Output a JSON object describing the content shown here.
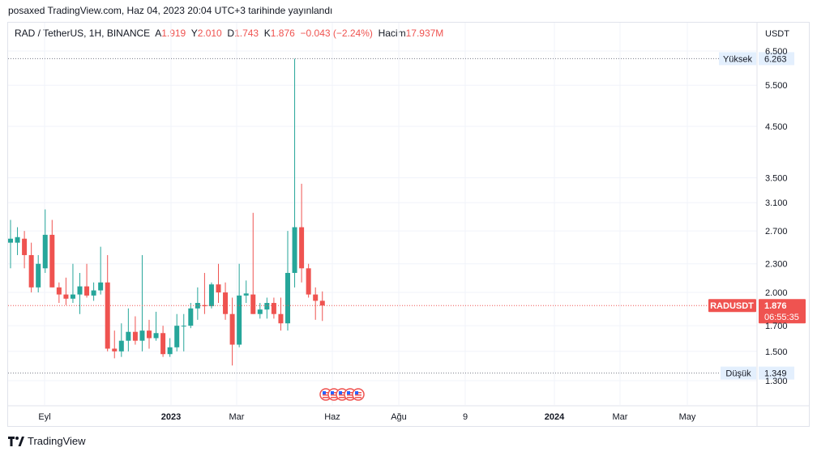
{
  "caption": "posaxed TradingView.com, Haz 04, 2023 20:04 UTC+3 tarihinde yayınlandı",
  "legend": {
    "symbol": "RAD / TetherUS, 1H, BINANCE",
    "open_label": "A",
    "open": "1.919",
    "high_label": "Y",
    "high": "2.010",
    "low_label": "D",
    "low": "1.743",
    "close_label": "K",
    "close": "1.876",
    "change": "−0.043 (−2.24%)",
    "volume_label": "Hacim",
    "volume": "17.937M"
  },
  "axis_currency": "USDT",
  "markers": {
    "high_label": "Yüksek",
    "high_value": "6.263",
    "low_label": "Düşük",
    "low_value": "1.349",
    "symbol_tag": "RADUSDT",
    "price_tag": "1.876",
    "countdown": "06:55:35"
  },
  "footer": {
    "brand": "TradingView",
    "logo_icon": "tradingview-logo-icon"
  },
  "colors": {
    "up": "#26a69a",
    "down": "#ef5350",
    "grid": "#f0f3fa",
    "tag_bg": "#e3effd"
  },
  "chart_data": {
    "type": "candlestick",
    "y_scale": "log",
    "y_ticks": [
      "6.500",
      "5.500",
      "4.500",
      "3.500",
      "3.100",
      "2.700",
      "2.300",
      "2.000",
      "1.700",
      "1.500",
      "1.300"
    ],
    "y_tick_values": [
      6.5,
      5.5,
      4.5,
      3.5,
      3.1,
      2.7,
      2.3,
      2.0,
      1.7,
      1.5,
      1.3
    ],
    "x_ticks": [
      "Eyl",
      "2023",
      "Mar",
      "Haz",
      "Ağu",
      "9",
      "2024",
      "Mar",
      "May"
    ],
    "x_bold": [
      "2023",
      "2024"
    ],
    "high_line": 6.263,
    "low_line": 1.349,
    "last_price": 1.876,
    "candles": [
      {
        "o": 2.55,
        "h": 2.85,
        "l": 2.25,
        "c": 2.6
      },
      {
        "o": 2.55,
        "h": 2.75,
        "l": 2.4,
        "c": 2.62
      },
      {
        "o": 2.6,
        "h": 2.7,
        "l": 2.25,
        "c": 2.4
      },
      {
        "o": 2.4,
        "h": 2.55,
        "l": 2.0,
        "c": 2.05
      },
      {
        "o": 2.05,
        "h": 2.4,
        "l": 2.0,
        "c": 2.3
      },
      {
        "o": 2.25,
        "h": 3.0,
        "l": 2.2,
        "c": 2.65
      },
      {
        "o": 2.65,
        "h": 2.85,
        "l": 2.05,
        "c": 2.05
      },
      {
        "o": 2.05,
        "h": 2.1,
        "l": 1.9,
        "c": 1.98
      },
      {
        "o": 1.98,
        "h": 2.15,
        "l": 1.88,
        "c": 1.94
      },
      {
        "o": 1.94,
        "h": 2.3,
        "l": 1.9,
        "c": 1.98
      },
      {
        "o": 1.98,
        "h": 2.2,
        "l": 1.8,
        "c": 2.06
      },
      {
        "o": 2.06,
        "h": 2.3,
        "l": 1.95,
        "c": 1.97
      },
      {
        "o": 1.97,
        "h": 2.1,
        "l": 1.92,
        "c": 2.02
      },
      {
        "o": 2.02,
        "h": 2.5,
        "l": 1.98,
        "c": 2.1
      },
      {
        "o": 2.1,
        "h": 2.4,
        "l": 1.5,
        "c": 1.52
      },
      {
        "o": 1.52,
        "h": 1.66,
        "l": 1.45,
        "c": 1.5
      },
      {
        "o": 1.5,
        "h": 1.72,
        "l": 1.46,
        "c": 1.58
      },
      {
        "o": 1.58,
        "h": 1.85,
        "l": 1.5,
        "c": 1.65
      },
      {
        "o": 1.65,
        "h": 1.78,
        "l": 1.55,
        "c": 1.58
      },
      {
        "o": 1.58,
        "h": 2.4,
        "l": 1.5,
        "c": 1.66
      },
      {
        "o": 1.66,
        "h": 1.75,
        "l": 1.52,
        "c": 1.6
      },
      {
        "o": 1.6,
        "h": 1.82,
        "l": 1.58,
        "c": 1.64
      },
      {
        "o": 1.64,
        "h": 1.7,
        "l": 1.46,
        "c": 1.48
      },
      {
        "o": 1.48,
        "h": 1.6,
        "l": 1.46,
        "c": 1.53
      },
      {
        "o": 1.53,
        "h": 1.8,
        "l": 1.5,
        "c": 1.7
      },
      {
        "o": 1.7,
        "h": 1.8,
        "l": 1.5,
        "c": 1.7
      },
      {
        "o": 1.7,
        "h": 1.9,
        "l": 1.68,
        "c": 1.85
      },
      {
        "o": 1.85,
        "h": 2.05,
        "l": 1.75,
        "c": 1.9
      },
      {
        "o": 1.88,
        "h": 2.2,
        "l": 1.8,
        "c": 1.87
      },
      {
        "o": 1.87,
        "h": 2.1,
        "l": 1.85,
        "c": 2.08
      },
      {
        "o": 2.08,
        "h": 2.3,
        "l": 1.9,
        "c": 2.0
      },
      {
        "o": 2.0,
        "h": 2.1,
        "l": 1.75,
        "c": 1.8
      },
      {
        "o": 1.8,
        "h": 1.95,
        "l": 1.4,
        "c": 1.55
      },
      {
        "o": 1.55,
        "h": 2.3,
        "l": 1.53,
        "c": 1.97
      },
      {
        "o": 1.97,
        "h": 2.12,
        "l": 1.9,
        "c": 1.99
      },
      {
        "o": 1.98,
        "h": 2.95,
        "l": 1.8,
        "c": 1.8
      },
      {
        "o": 1.8,
        "h": 1.9,
        "l": 1.76,
        "c": 1.84
      },
      {
        "o": 1.84,
        "h": 1.95,
        "l": 1.76,
        "c": 1.9
      },
      {
        "o": 1.9,
        "h": 1.95,
        "l": 1.76,
        "c": 1.8
      },
      {
        "o": 1.8,
        "h": 1.95,
        "l": 1.66,
        "c": 1.72
      },
      {
        "o": 1.72,
        "h": 2.7,
        "l": 1.66,
        "c": 2.2
      },
      {
        "o": 2.2,
        "h": 6.26,
        "l": 2.05,
        "c": 2.75
      },
      {
        "o": 2.75,
        "h": 3.4,
        "l": 2.1,
        "c": 2.25
      },
      {
        "o": 2.25,
        "h": 2.3,
        "l": 1.95,
        "c": 1.98
      },
      {
        "o": 1.98,
        "h": 2.05,
        "l": 1.75,
        "c": 1.92
      },
      {
        "o": 1.92,
        "h": 2.01,
        "l": 1.74,
        "c": 1.876
      }
    ]
  }
}
